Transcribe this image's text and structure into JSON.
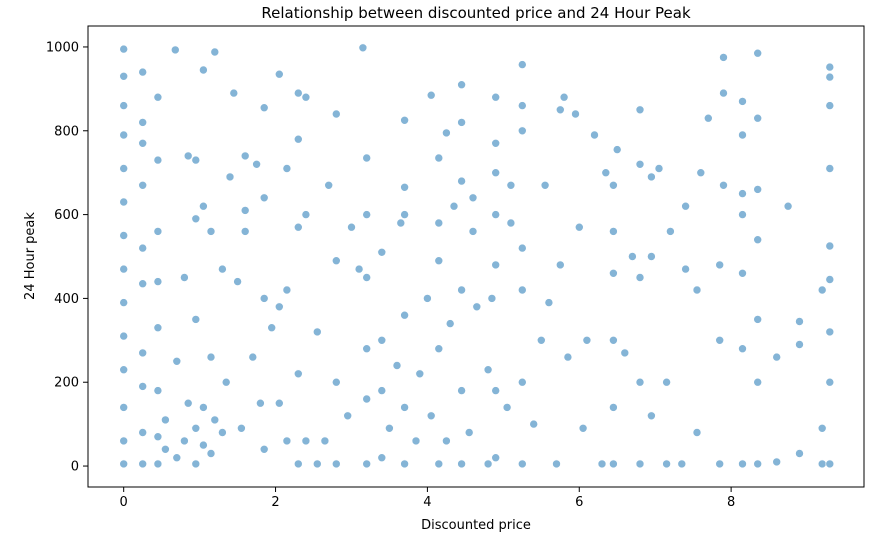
{
  "chart_data": {
    "type": "scatter",
    "title": "Relationship between discounted price and 24 Hour Peak",
    "xlabel": "Discounted price",
    "ylabel": "24 Hour peak",
    "xlim": [
      -0.47,
      9.75
    ],
    "ylim": [
      -50,
      1050
    ],
    "xticks": [
      0,
      2,
      4,
      6,
      8
    ],
    "yticks": [
      0,
      200,
      400,
      600,
      800,
      1000
    ],
    "grid": false,
    "legend": "none",
    "point_color": "#1f77b4",
    "point_opacity": 0.55,
    "series": [
      {
        "points": [
          [
            0,
            5
          ],
          [
            0,
            60
          ],
          [
            0,
            140
          ],
          [
            0,
            230
          ],
          [
            0,
            310
          ],
          [
            0,
            390
          ],
          [
            0,
            470
          ],
          [
            0,
            550
          ],
          [
            0,
            630
          ],
          [
            0,
            710
          ],
          [
            0,
            790
          ],
          [
            0,
            860
          ],
          [
            0,
            930
          ],
          [
            0,
            995
          ],
          [
            0.25,
            5
          ],
          [
            0.25,
            80
          ],
          [
            0.25,
            190
          ],
          [
            0.25,
            270
          ],
          [
            0.25,
            435
          ],
          [
            0.25,
            520
          ],
          [
            0.25,
            670
          ],
          [
            0.25,
            770
          ],
          [
            0.25,
            820
          ],
          [
            0.25,
            940
          ],
          [
            0.45,
            5
          ],
          [
            0.45,
            70
          ],
          [
            0.45,
            180
          ],
          [
            0.45,
            330
          ],
          [
            0.45,
            440
          ],
          [
            0.45,
            560
          ],
          [
            0.45,
            730
          ],
          [
            0.45,
            880
          ],
          [
            0.55,
            40
          ],
          [
            0.55,
            110
          ],
          [
            0.7,
            20
          ],
          [
            0.7,
            250
          ],
          [
            0.68,
            993
          ],
          [
            0.8,
            60
          ],
          [
            0.8,
            450
          ],
          [
            0.85,
            150
          ],
          [
            0.85,
            740
          ],
          [
            0.95,
            5
          ],
          [
            0.95,
            90
          ],
          [
            0.95,
            350
          ],
          [
            0.95,
            590
          ],
          [
            0.95,
            730
          ],
          [
            1.05,
            50
          ],
          [
            1.05,
            140
          ],
          [
            1.05,
            620
          ],
          [
            1.05,
            945
          ],
          [
            1.15,
            30
          ],
          [
            1.15,
            260
          ],
          [
            1.15,
            560
          ],
          [
            1.2,
            110
          ],
          [
            1.2,
            988
          ],
          [
            1.3,
            80
          ],
          [
            1.3,
            470
          ],
          [
            1.35,
            200
          ],
          [
            1.4,
            690
          ],
          [
            1.45,
            890
          ],
          [
            1.5,
            440
          ],
          [
            1.55,
            90
          ],
          [
            1.6,
            560
          ],
          [
            1.6,
            610
          ],
          [
            1.6,
            740
          ],
          [
            1.7,
            260
          ],
          [
            1.75,
            720
          ],
          [
            1.8,
            150
          ],
          [
            1.85,
            40
          ],
          [
            1.85,
            400
          ],
          [
            1.85,
            640
          ],
          [
            1.85,
            855
          ],
          [
            1.95,
            330
          ],
          [
            2.05,
            150
          ],
          [
            2.05,
            380
          ],
          [
            2.05,
            935
          ],
          [
            2.15,
            60
          ],
          [
            2.15,
            420
          ],
          [
            2.15,
            710
          ],
          [
            2.3,
            5
          ],
          [
            2.3,
            220
          ],
          [
            2.3,
            570
          ],
          [
            2.3,
            780
          ],
          [
            2.3,
            890
          ],
          [
            2.4,
            60
          ],
          [
            2.4,
            600
          ],
          [
            2.4,
            880
          ],
          [
            2.55,
            5
          ],
          [
            2.55,
            320
          ],
          [
            2.65,
            60
          ],
          [
            2.7,
            670
          ],
          [
            2.8,
            5
          ],
          [
            2.8,
            200
          ],
          [
            2.8,
            490
          ],
          [
            2.8,
            840
          ],
          [
            2.95,
            120
          ],
          [
            3.0,
            570
          ],
          [
            3.1,
            470
          ],
          [
            3.2,
            5
          ],
          [
            3.2,
            160
          ],
          [
            3.2,
            280
          ],
          [
            3.2,
            450
          ],
          [
            3.2,
            600
          ],
          [
            3.2,
            735
          ],
          [
            3.15,
            998
          ],
          [
            3.4,
            20
          ],
          [
            3.4,
            180
          ],
          [
            3.4,
            300
          ],
          [
            3.4,
            510
          ],
          [
            3.5,
            90
          ],
          [
            3.6,
            240
          ],
          [
            3.65,
            580
          ],
          [
            3.7,
            5
          ],
          [
            3.7,
            140
          ],
          [
            3.7,
            360
          ],
          [
            3.7,
            600
          ],
          [
            3.7,
            665
          ],
          [
            3.7,
            825
          ],
          [
            3.85,
            60
          ],
          [
            3.9,
            220
          ],
          [
            4.0,
            400
          ],
          [
            4.05,
            120
          ],
          [
            4.05,
            885
          ],
          [
            4.15,
            5
          ],
          [
            4.15,
            280
          ],
          [
            4.15,
            490
          ],
          [
            4.15,
            580
          ],
          [
            4.15,
            735
          ],
          [
            4.25,
            60
          ],
          [
            4.25,
            795
          ],
          [
            4.3,
            340
          ],
          [
            4.35,
            620
          ],
          [
            4.45,
            5
          ],
          [
            4.45,
            180
          ],
          [
            4.45,
            420
          ],
          [
            4.45,
            680
          ],
          [
            4.45,
            820
          ],
          [
            4.45,
            910
          ],
          [
            4.55,
            80
          ],
          [
            4.6,
            560
          ],
          [
            4.6,
            640
          ],
          [
            4.65,
            380
          ],
          [
            4.8,
            5
          ],
          [
            4.8,
            230
          ],
          [
            4.85,
            400
          ],
          [
            4.9,
            20
          ],
          [
            4.9,
            180
          ],
          [
            4.9,
            480
          ],
          [
            4.9,
            600
          ],
          [
            4.9,
            700
          ],
          [
            4.9,
            770
          ],
          [
            4.9,
            880
          ],
          [
            5.05,
            140
          ],
          [
            5.1,
            580
          ],
          [
            5.1,
            670
          ],
          [
            5.25,
            5
          ],
          [
            5.25,
            200
          ],
          [
            5.25,
            420
          ],
          [
            5.25,
            520
          ],
          [
            5.25,
            800
          ],
          [
            5.25,
            860
          ],
          [
            5.25,
            958
          ],
          [
            5.4,
            100
          ],
          [
            5.5,
            300
          ],
          [
            5.55,
            670
          ],
          [
            5.6,
            390
          ],
          [
            5.7,
            5
          ],
          [
            5.75,
            480
          ],
          [
            5.75,
            850
          ],
          [
            5.8,
            880
          ],
          [
            5.85,
            260
          ],
          [
            5.95,
            840
          ],
          [
            6.0,
            570
          ],
          [
            6.05,
            90
          ],
          [
            6.1,
            300
          ],
          [
            6.2,
            790
          ],
          [
            6.3,
            5
          ],
          [
            6.35,
            700
          ],
          [
            6.45,
            5
          ],
          [
            6.45,
            140
          ],
          [
            6.45,
            300
          ],
          [
            6.45,
            460
          ],
          [
            6.45,
            560
          ],
          [
            6.45,
            670
          ],
          [
            6.5,
            755
          ],
          [
            6.6,
            270
          ],
          [
            6.7,
            500
          ],
          [
            6.8,
            5
          ],
          [
            6.8,
            200
          ],
          [
            6.8,
            450
          ],
          [
            6.8,
            720
          ],
          [
            6.8,
            850
          ],
          [
            6.95,
            120
          ],
          [
            6.95,
            500
          ],
          [
            6.95,
            690
          ],
          [
            7.05,
            710
          ],
          [
            7.15,
            5
          ],
          [
            7.15,
            200
          ],
          [
            7.2,
            560
          ],
          [
            7.35,
            5
          ],
          [
            7.4,
            470
          ],
          [
            7.4,
            620
          ],
          [
            7.55,
            80
          ],
          [
            7.55,
            420
          ],
          [
            7.6,
            700
          ],
          [
            7.7,
            830
          ],
          [
            7.85,
            5
          ],
          [
            7.85,
            300
          ],
          [
            7.85,
            480
          ],
          [
            7.9,
            670
          ],
          [
            7.9,
            890
          ],
          [
            7.9,
            975
          ],
          [
            8.15,
            5
          ],
          [
            8.15,
            280
          ],
          [
            8.15,
            460
          ],
          [
            8.15,
            600
          ],
          [
            8.15,
            650
          ],
          [
            8.15,
            790
          ],
          [
            8.15,
            870
          ],
          [
            8.35,
            5
          ],
          [
            8.35,
            200
          ],
          [
            8.35,
            350
          ],
          [
            8.35,
            540
          ],
          [
            8.35,
            660
          ],
          [
            8.35,
            830
          ],
          [
            8.35,
            985
          ],
          [
            8.6,
            10
          ],
          [
            8.6,
            260
          ],
          [
            8.75,
            620
          ],
          [
            8.9,
            30
          ],
          [
            8.9,
            290
          ],
          [
            8.9,
            345
          ],
          [
            9.2,
            5
          ],
          [
            9.2,
            90
          ],
          [
            9.2,
            420
          ],
          [
            9.3,
            5
          ],
          [
            9.3,
            200
          ],
          [
            9.3,
            320
          ],
          [
            9.3,
            445
          ],
          [
            9.3,
            525
          ],
          [
            9.3,
            710
          ],
          [
            9.3,
            860
          ],
          [
            9.3,
            928
          ],
          [
            9.3,
            952
          ]
        ]
      }
    ]
  }
}
